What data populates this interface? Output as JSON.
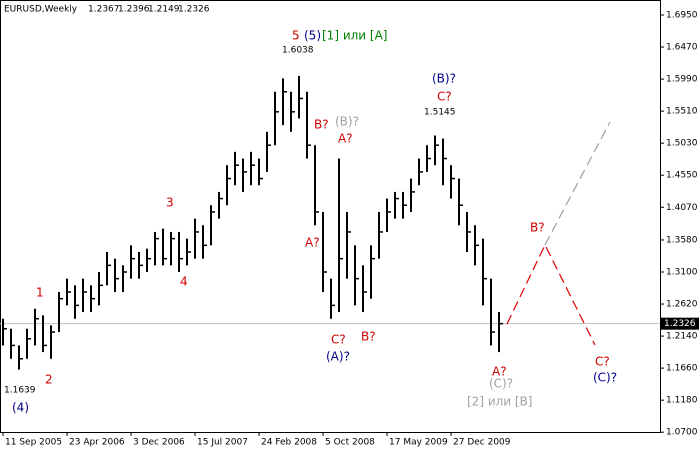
{
  "chart_data": {
    "type": "ohlc",
    "symbol": "EURUSD,Weekly",
    "quote": [
      1.2367,
      1.2396,
      1.2149,
      1.2326
    ],
    "current_price": 1.2326,
    "color": "#000000",
    "x": [
      0,
      4,
      8,
      12,
      16,
      20,
      24,
      28,
      32,
      36,
      40,
      44,
      48,
      52,
      56,
      60,
      64,
      68,
      72,
      76,
      80,
      84,
      88,
      92,
      96,
      100,
      104,
      108,
      112,
      116,
      120,
      124,
      128,
      132,
      136,
      140,
      144,
      148,
      152,
      156,
      160,
      164,
      168,
      172,
      176,
      180,
      184,
      188,
      192,
      196,
      200,
      204,
      208,
      212,
      216,
      220,
      224,
      228,
      232,
      236,
      240,
      244,
      248
    ],
    "high": [
      1.24,
      1.225,
      1.2,
      1.225,
      1.255,
      1.245,
      1.23,
      1.28,
      1.3,
      1.29,
      1.3,
      1.29,
      1.31,
      1.34,
      1.33,
      1.32,
      1.35,
      1.34,
      1.345,
      1.37,
      1.375,
      1.37,
      1.37,
      1.36,
      1.39,
      1.38,
      1.41,
      1.43,
      1.47,
      1.49,
      1.48,
      1.49,
      1.48,
      1.52,
      1.58,
      1.6,
      1.58,
      1.6038,
      1.58,
      1.5,
      1.4,
      1.3,
      1.48,
      1.4,
      1.35,
      1.32,
      1.35,
      1.4,
      1.42,
      1.43,
      1.43,
      1.45,
      1.48,
      1.5,
      1.5145,
      1.51,
      1.47,
      1.45,
      1.4,
      1.38,
      1.36,
      1.3,
      1.25
    ],
    "low": [
      1.2,
      1.18,
      1.1639,
      1.18,
      1.2,
      1.19,
      1.18,
      1.22,
      1.26,
      1.24,
      1.25,
      1.25,
      1.26,
      1.29,
      1.28,
      1.28,
      1.3,
      1.3,
      1.31,
      1.32,
      1.32,
      1.32,
      1.31,
      1.32,
      1.33,
      1.33,
      1.35,
      1.39,
      1.41,
      1.44,
      1.43,
      1.44,
      1.44,
      1.46,
      1.5,
      1.53,
      1.52,
      1.54,
      1.48,
      1.38,
      1.28,
      1.24,
      1.25,
      1.3,
      1.26,
      1.25,
      1.27,
      1.33,
      1.37,
      1.39,
      1.39,
      1.4,
      1.44,
      1.46,
      1.47,
      1.44,
      1.42,
      1.38,
      1.34,
      1.32,
      1.26,
      1.2,
      1.19
    ],
    "close": [
      1.225,
      1.2,
      1.18,
      1.21,
      1.24,
      1.2,
      1.22,
      1.27,
      1.28,
      1.26,
      1.28,
      1.27,
      1.29,
      1.32,
      1.3,
      1.31,
      1.33,
      1.32,
      1.33,
      1.36,
      1.33,
      1.36,
      1.33,
      1.34,
      1.37,
      1.35,
      1.4,
      1.42,
      1.45,
      1.47,
      1.46,
      1.47,
      1.45,
      1.5,
      1.55,
      1.58,
      1.55,
      1.57,
      1.5,
      1.4,
      1.31,
      1.26,
      1.33,
      1.37,
      1.3,
      1.28,
      1.33,
      1.37,
      1.4,
      1.42,
      1.41,
      1.43,
      1.46,
      1.48,
      1.5,
      1.48,
      1.45,
      1.41,
      1.37,
      1.35,
      1.3,
      1.22,
      1.2326
    ],
    "projections": [
      {
        "color": "#e00000",
        "x": [
          252,
          271,
          296
        ],
        "values": [
          1.232,
          1.3505,
          1.2006
        ]
      },
      {
        "color": "#a0a0a0",
        "x": [
          271,
          303.5
        ],
        "values": [
          1.3505,
          1.5347
        ]
      }
    ],
    "xlim": [
      -1.5,
      328.5
    ],
    "ylim": [
      1.0703,
      1.713
    ],
    "xticks": [
      {
        "value": 0,
        "label": "11 Sep 2005"
      },
      {
        "value": 32,
        "label": "23 Apr 2006"
      },
      {
        "value": 64,
        "label": "3 Dec 2006"
      },
      {
        "value": 96,
        "label": "15 Jul 2007"
      },
      {
        "value": 128,
        "label": "24 Feb 2008"
      },
      {
        "value": 160,
        "label": "5 Oct 2008"
      },
      {
        "value": 192,
        "label": "17 May 2009"
      },
      {
        "value": 224,
        "label": "27 Dec 2009"
      }
    ],
    "yticks": [
      {
        "value": 1.695,
        "label": "1.6950"
      },
      {
        "value": 1.647,
        "label": "1.6470"
      },
      {
        "value": 1.599,
        "label": "1.5990"
      },
      {
        "value": 1.551,
        "label": "1.5510"
      },
      {
        "value": 1.503,
        "label": "1.5030"
      },
      {
        "value": 1.455,
        "label": "1.4550"
      },
      {
        "value": 1.407,
        "label": "1.4070"
      },
      {
        "value": 1.358,
        "label": "1.3580"
      },
      {
        "value": 1.31,
        "label": "1.3100"
      },
      {
        "value": 1.262,
        "label": "1.2620"
      },
      {
        "value": 1.214,
        "label": "1.2140"
      },
      {
        "value": 1.166,
        "label": "1.1660"
      },
      {
        "value": 1.118,
        "label": "1.1180"
      },
      {
        "value": 1.07,
        "label": "1.0700"
      }
    ],
    "annotations": [
      {
        "text": "5",
        "color": "#d00000"
      },
      {
        "text": "(5)",
        "color": "#00008b"
      },
      {
        "text": "[1] или [A]",
        "color": "#008000"
      },
      {
        "text": "1.6038",
        "color": "#000000"
      },
      {
        "text": "(B)?",
        "color": "#00008b"
      },
      {
        "text": "C?",
        "color": "#d00000"
      },
      {
        "text": "1.5145",
        "color": "#000000"
      },
      {
        "text": "B?",
        "color": "#d00000"
      },
      {
        "text": "(B)?",
        "color": "#a0a0a0"
      },
      {
        "text": "A?",
        "color": "#d00000"
      },
      {
        "text": "A?",
        "color": "#d00000"
      },
      {
        "text": "3",
        "color": "#d00000"
      },
      {
        "text": "4",
        "color": "#d00000"
      },
      {
        "text": "1",
        "color": "#d00000"
      },
      {
        "text": "2",
        "color": "#d00000"
      },
      {
        "text": "1.1639",
        "color": "#000000"
      },
      {
        "text": "(4)",
        "color": "#00008b"
      },
      {
        "text": "C?",
        "color": "#d00000"
      },
      {
        "text": "B?",
        "color": "#d00000"
      },
      {
        "text": "(A)?",
        "color": "#00008b"
      },
      {
        "text": "B?",
        "color": "#d00000"
      },
      {
        "text": "A?",
        "color": "#d00000"
      },
      {
        "text": "(C)?",
        "color": "#a0a0a0"
      },
      {
        "text": "[2] или [B]",
        "color": "#a0a0a0"
      },
      {
        "text": "C?",
        "color": "#d00000"
      },
      {
        "text": "(C)?",
        "color": "#00008b"
      }
    ]
  }
}
